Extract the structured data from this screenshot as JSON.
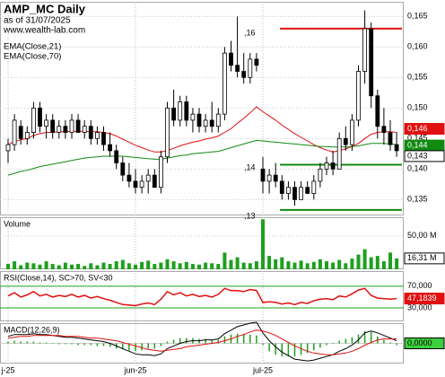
{
  "header": {
    "title": "AMP_MC Daily",
    "subtitle": "as of 31/07/2025",
    "source": "www.wealth-lab.com"
  },
  "chart_data": [
    {
      "type": "candlestick",
      "open": [
        0.143,
        0.144,
        0.147,
        0.145,
        0.146,
        0.15,
        0.147,
        0.148,
        0.146,
        0.147,
        0.146,
        0.148,
        0.146,
        0.147,
        0.145,
        0.146,
        0.144,
        0.143,
        0.141,
        0.139,
        0.138,
        0.137,
        0.138,
        0.139,
        0.137,
        0.142,
        0.15,
        0.148,
        0.151,
        0.148,
        0.149,
        0.147,
        0.148,
        0.147,
        0.149,
        0.159,
        0.157,
        0.156,
        0.155,
        0.158,
        0.14,
        0.138,
        0.139,
        0.138,
        0.136,
        0.137,
        0.135,
        0.137,
        0.136,
        0.138,
        0.14,
        0.141,
        0.14,
        0.145,
        0.144,
        0.148,
        0.156,
        0.163,
        0.152,
        0.147,
        0.146,
        0.144
      ],
      "high": [
        0.145,
        0.149,
        0.148,
        0.147,
        0.151,
        0.151,
        0.149,
        0.149,
        0.148,
        0.148,
        0.149,
        0.149,
        0.148,
        0.148,
        0.147,
        0.147,
        0.146,
        0.144,
        0.142,
        0.141,
        0.14,
        0.139,
        0.14,
        0.14,
        0.143,
        0.151,
        0.153,
        0.152,
        0.152,
        0.15,
        0.15,
        0.149,
        0.151,
        0.15,
        0.16,
        0.161,
        0.165,
        0.159,
        0.159,
        0.159,
        0.142,
        0.14,
        0.141,
        0.139,
        0.138,
        0.138,
        0.138,
        0.138,
        0.139,
        0.141,
        0.142,
        0.143,
        0.146,
        0.147,
        0.149,
        0.157,
        0.166,
        0.164,
        0.153,
        0.15,
        0.148,
        0.146
      ],
      "low": [
        0.141,
        0.143,
        0.144,
        0.144,
        0.145,
        0.146,
        0.145,
        0.145,
        0.145,
        0.145,
        0.145,
        0.146,
        0.145,
        0.144,
        0.144,
        0.143,
        0.142,
        0.14,
        0.138,
        0.137,
        0.136,
        0.136,
        0.136,
        0.137,
        0.136,
        0.141,
        0.147,
        0.147,
        0.147,
        0.146,
        0.146,
        0.146,
        0.146,
        0.146,
        0.148,
        0.156,
        0.155,
        0.154,
        0.154,
        0.156,
        0.136,
        0.136,
        0.137,
        0.135,
        0.135,
        0.134,
        0.135,
        0.136,
        0.135,
        0.137,
        0.139,
        0.139,
        0.14,
        0.143,
        0.143,
        0.147,
        0.154,
        0.15,
        0.145,
        0.144,
        0.143,
        0.142
      ],
      "close": [
        0.144,
        0.148,
        0.145,
        0.146,
        0.15,
        0.147,
        0.148,
        0.146,
        0.147,
        0.146,
        0.148,
        0.146,
        0.147,
        0.145,
        0.146,
        0.144,
        0.143,
        0.141,
        0.139,
        0.138,
        0.137,
        0.138,
        0.139,
        0.137,
        0.142,
        0.15,
        0.148,
        0.151,
        0.148,
        0.149,
        0.147,
        0.148,
        0.147,
        0.149,
        0.159,
        0.157,
        0.156,
        0.155,
        0.158,
        0.157,
        0.138,
        0.139,
        0.138,
        0.136,
        0.137,
        0.135,
        0.137,
        0.136,
        0.138,
        0.14,
        0.141,
        0.14,
        0.145,
        0.144,
        0.148,
        0.156,
        0.163,
        0.152,
        0.147,
        0.146,
        0.144,
        0.143
      ],
      "close_label": "0,143",
      "series": [
        {
          "name": "EMA(Close,21)",
          "color": "#e01010",
          "last_label": "0,146",
          "values": [
            0.144,
            0.1445,
            0.1448,
            0.145,
            0.1455,
            0.1458,
            0.146,
            0.146,
            0.1461,
            0.1461,
            0.1462,
            0.1462,
            0.1462,
            0.1461,
            0.1461,
            0.146,
            0.1458,
            0.1454,
            0.1449,
            0.1444,
            0.1439,
            0.1435,
            0.1431,
            0.1428,
            0.1428,
            0.143,
            0.1434,
            0.1438,
            0.1441,
            0.1444,
            0.1446,
            0.1449,
            0.1451,
            0.1454,
            0.146,
            0.1466,
            0.1475,
            0.1483,
            0.1492,
            0.1502,
            0.1494,
            0.1487,
            0.148,
            0.1472,
            0.1465,
            0.1458,
            0.1452,
            0.1446,
            0.144,
            0.1435,
            0.1431,
            0.1428,
            0.143,
            0.1433,
            0.1437,
            0.1442,
            0.145,
            0.1457,
            0.146,
            0.1461,
            0.1461,
            0.146
          ]
        },
        {
          "name": "EMA(Close,70)",
          "color": "#128a12",
          "last_label": "0,144",
          "values": [
            0.139,
            0.1393,
            0.1396,
            0.1398,
            0.1401,
            0.1404,
            0.1406,
            0.1408,
            0.141,
            0.1412,
            0.1414,
            0.1416,
            0.1418,
            0.1419,
            0.142,
            0.1421,
            0.1421,
            0.1421,
            0.1421,
            0.142,
            0.1419,
            0.1418,
            0.1417,
            0.1416,
            0.1416,
            0.1418,
            0.142,
            0.1422,
            0.1423,
            0.1425,
            0.1426,
            0.1427,
            0.1428,
            0.1429,
            0.1432,
            0.1435,
            0.1438,
            0.1441,
            0.1444,
            0.1447,
            0.1446,
            0.1445,
            0.1444,
            0.1443,
            0.1442,
            0.1441,
            0.144,
            0.1439,
            0.1438,
            0.1437,
            0.1437,
            0.1436,
            0.1436,
            0.1436,
            0.1437,
            0.1438,
            0.144,
            0.1442,
            0.1442,
            0.1442,
            0.1441,
            0.144
          ]
        }
      ],
      "annotations": [
        ",16",
        ",14",
        ",13"
      ],
      "levels": [
        {
          "value": 0.163,
          "color": "#e01010"
        },
        {
          "value": 0.1407,
          "color": "#128a12"
        },
        {
          "value": 0.1333,
          "color": "#128a12"
        }
      ],
      "ylim": [
        0.1324,
        0.1674
      ],
      "yticks": [
        {
          "value": 0.135,
          "label": "0,135"
        },
        {
          "value": 0.14,
          "label": "0,140"
        },
        {
          "value": 0.145,
          "label": "0,145"
        },
        {
          "value": 0.15,
          "label": "0,150"
        },
        {
          "value": 0.155,
          "label": "0,155"
        },
        {
          "value": 0.16,
          "label": "0,160"
        },
        {
          "value": 0.165,
          "label": "0,165"
        }
      ],
      "grid": true
    },
    {
      "type": "bar",
      "title": "Volume",
      "color": "#1ea01e",
      "last_label": "16,31 M",
      "values": [
        8,
        12,
        6,
        10,
        9,
        7,
        12,
        8,
        6,
        10,
        7,
        8,
        5,
        9,
        6,
        10,
        8,
        12,
        14,
        9,
        7,
        11,
        13,
        8,
        10,
        15,
        12,
        9,
        11,
        8,
        7,
        10,
        9,
        8,
        25,
        14,
        18,
        10,
        9,
        12,
        75,
        20,
        15,
        18,
        12,
        10,
        13,
        9,
        11,
        15,
        12,
        10,
        14,
        9,
        16,
        22,
        30,
        18,
        20,
        12,
        25,
        16.31
      ],
      "ylim": [
        0,
        78
      ],
      "yticks": [
        {
          "value": 50,
          "label": "50,00 M"
        }
      ]
    },
    {
      "type": "line",
      "title": "RSI(Close,14), SC>70, SV<30",
      "color": "#e01010",
      "last_label": "47,1839",
      "values": [
        52,
        58,
        50,
        54,
        60,
        52,
        55,
        50,
        53,
        51,
        55,
        50,
        53,
        48,
        51,
        47,
        44,
        40,
        36,
        35,
        34,
        37,
        39,
        36,
        46,
        60,
        54,
        58,
        52,
        55,
        51,
        53,
        50,
        55,
        66,
        62,
        62,
        60,
        64,
        62,
        40,
        41,
        40,
        37,
        39,
        36,
        40,
        38,
        43,
        46,
        47,
        45,
        52,
        50,
        56,
        63,
        66,
        53,
        48,
        47,
        46,
        47.1839
      ],
      "ylim": [
        5,
        98
      ],
      "yticks": [
        {
          "value": 30,
          "label": "30,000"
        },
        {
          "value": 70,
          "label": "70,000"
        }
      ],
      "guide_color": "#1ea01e"
    },
    {
      "type": "macd",
      "title": "MACD(12,26,9)",
      "macd_color": "#000000",
      "signal_color": "#e01010",
      "histogram_color": "#1ea01e",
      "macd": [
        0.0008,
        0.001,
        0.001,
        0.001,
        0.0011,
        0.001,
        0.001,
        0.0009,
        0.0008,
        0.0007,
        0.0007,
        0.0006,
        0.0005,
        0.0004,
        0.0003,
        0.0002,
        0,
        -0.0003,
        -0.0006,
        -0.0009,
        -0.0012,
        -0.0013,
        -0.0013,
        -0.0014,
        -0.0012,
        -0.0006,
        -0.0003,
        0,
        0.0002,
        0.0003,
        0.0003,
        0.0004,
        0.0004,
        0.0005,
        0.0011,
        0.0015,
        0.0019,
        0.0021,
        0.0023,
        0.0024,
        0.0012,
        0.0003,
        -0.0004,
        -0.001,
        -0.0014,
        -0.0018,
        -0.0019,
        -0.002,
        -0.0019,
        -0.0017,
        -0.0015,
        -0.0013,
        -0.0009,
        -0.0006,
        -0.0002,
        0.0004,
        0.0012,
        0.0014,
        0.0012,
        0.0009,
        0.0006,
        0.0003
      ],
      "signal": [
        0.0006,
        0.0007,
        0.0008,
        0.0008,
        0.0009,
        0.0009,
        0.0009,
        0.0009,
        0.0009,
        0.0008,
        0.0008,
        0.0008,
        0.0007,
        0.0006,
        0.0006,
        0.0005,
        0.0004,
        0.0003,
        0.0001,
        -0.0001,
        -0.0003,
        -0.0005,
        -0.0007,
        -0.0008,
        -0.0009,
        -0.0008,
        -0.0007,
        -0.0006,
        -0.0004,
        -0.0003,
        -0.0002,
        -0.0001,
        0,
        0.0001,
        0.0003,
        0.0005,
        0.0008,
        0.001,
        0.0013,
        0.0015,
        0.0014,
        0.0012,
        0.0009,
        0.0005,
        0.0001,
        -0.0003,
        -0.0006,
        -0.0009,
        -0.0011,
        -0.0012,
        -0.0013,
        -0.0013,
        -0.0012,
        -0.0011,
        -0.0009,
        -0.0006,
        -0.0002,
        0.0001,
        0.0004,
        0.0005,
        0.0005,
        0.0005
      ],
      "histogram": [
        0.0002,
        0.0003,
        0.0002,
        0.0002,
        0.0002,
        0.0001,
        0.0001,
        0,
        -0.0001,
        -0.0001,
        -0.0001,
        -0.0002,
        -0.0002,
        -0.0002,
        -0.0003,
        -0.0003,
        -0.0004,
        -0.0006,
        -0.0007,
        -0.0008,
        -0.0009,
        -0.0008,
        -0.0006,
        -0.0006,
        -0.0003,
        0.0002,
        0.0004,
        0.0006,
        0.0006,
        0.0006,
        0.0005,
        0.0005,
        0.0004,
        0.0004,
        0.0008,
        0.001,
        0.0011,
        0.0011,
        0.001,
        0.0009,
        -0.0002,
        -0.0009,
        -0.0013,
        -0.0015,
        -0.0015,
        -0.0015,
        -0.0013,
        -0.0011,
        -0.0008,
        -0.0005,
        -0.0002,
        0,
        0.0003,
        0.0005,
        0.0007,
        0.001,
        0.0014,
        0.0013,
        0.0008,
        0.0004,
        0.0001,
        -0.0002
      ],
      "ylim": [
        -0.0023,
        0.0023
      ],
      "yticks": [
        {
          "value": 0,
          "label": "0,0000"
        }
      ],
      "xticks": [
        {
          "value": 0,
          "label": "j-25"
        },
        {
          "value": 20,
          "label": "jun-25"
        },
        {
          "value": 40,
          "label": "jul-25"
        }
      ]
    }
  ]
}
